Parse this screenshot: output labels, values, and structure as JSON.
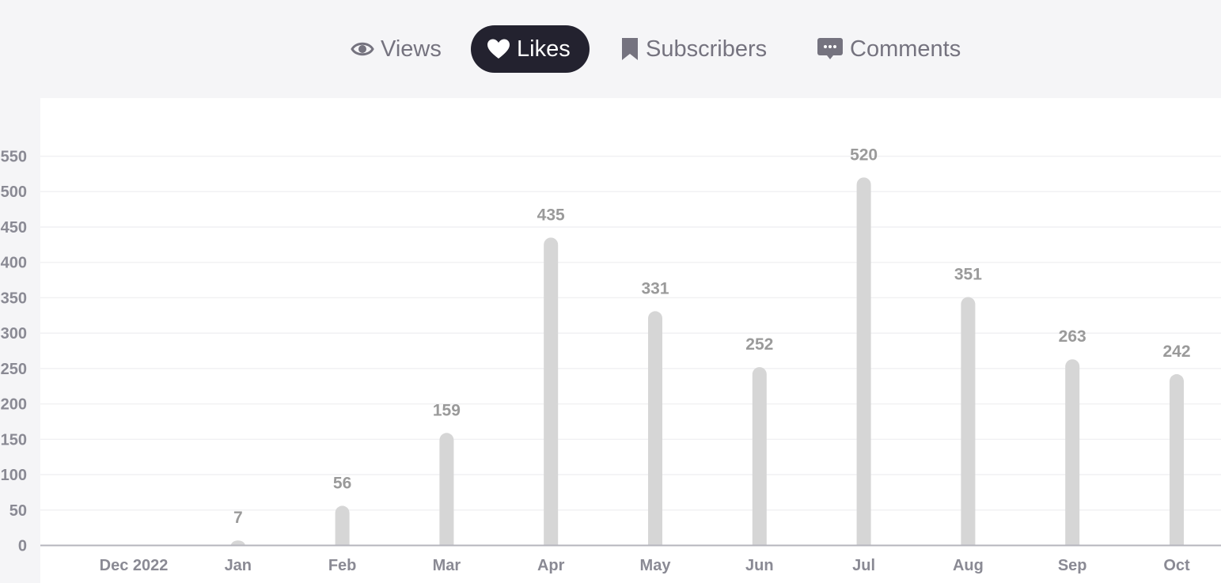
{
  "tabs": [
    {
      "label": "Views",
      "icon": "eye-icon",
      "active": false
    },
    {
      "label": "Likes",
      "icon": "heart-icon",
      "active": true
    },
    {
      "label": "Subscribers",
      "icon": "bookmark-icon",
      "active": false
    },
    {
      "label": "Comments",
      "icon": "comment-icon",
      "active": false
    }
  ],
  "colors": {
    "active_tab_bg": "#23222f",
    "tab_text": "#75737f",
    "bar": "#d6d6d6",
    "data_label": "#9a9a9a",
    "tick_label": "#8a8a94"
  },
  "chart_data": {
    "type": "bar",
    "categories": [
      "Dec 2022",
      "Jan",
      "Feb",
      "Mar",
      "Apr",
      "May",
      "Jun",
      "Jul",
      "Aug",
      "Sep",
      "Oct"
    ],
    "values": [
      0,
      7,
      56,
      159,
      435,
      331,
      252,
      520,
      351,
      263,
      242
    ],
    "data_labels": [
      "",
      "7",
      "56",
      "159",
      "435",
      "331",
      "252",
      "520",
      "351",
      "263",
      "242"
    ],
    "yticks": [
      "0",
      "50",
      "100",
      "150",
      "200",
      "250",
      "300",
      "350",
      "400",
      "450",
      "500",
      "550"
    ],
    "ylim": [
      0,
      550
    ],
    "grid": true
  }
}
